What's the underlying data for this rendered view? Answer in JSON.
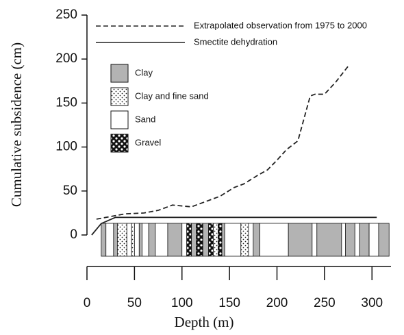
{
  "chart_data": {
    "type": "line",
    "xlabel": "Depth (m)",
    "ylabel": "Cumulative subsidence (cm)",
    "xlim": [
      0,
      320
    ],
    "ylim": [
      0,
      250
    ],
    "xticks": [
      0,
      50,
      100,
      150,
      200,
      250,
      300
    ],
    "yticks": [
      0,
      50,
      100,
      150,
      200,
      250
    ],
    "series": [
      {
        "name": "Extrapolated observation from 1975 to 2000",
        "color": "#222222",
        "style": "dashed",
        "x": [
          10,
          20,
          40,
          60,
          75,
          90,
          100,
          110,
          125,
          140,
          155,
          165,
          180,
          190,
          200,
          210,
          222,
          235,
          240,
          250,
          262,
          275
        ],
        "values": [
          18,
          20,
          24,
          25,
          28,
          34,
          33,
          32,
          38,
          44,
          54,
          58,
          68,
          74,
          85,
          97,
          107,
          158,
          160,
          160,
          174,
          192
        ]
      },
      {
        "name": "Smectite dehydration",
        "color": "#222222",
        "style": "solid",
        "x": [
          5,
          15,
          30,
          305
        ],
        "values": [
          0,
          13,
          20,
          20
        ]
      }
    ],
    "lithology_legend": [
      "Clay",
      "Clay and fine sand",
      "Sand",
      "Gravel"
    ],
    "lithology": [
      {
        "from": 15,
        "to": 20,
        "type": "Clay"
      },
      {
        "from": 20,
        "to": 28,
        "type": "Sand"
      },
      {
        "from": 28,
        "to": 32,
        "type": "Clay"
      },
      {
        "from": 32,
        "to": 42,
        "type": "Clay and fine sand"
      },
      {
        "from": 42,
        "to": 47,
        "type": "Sand"
      },
      {
        "from": 47,
        "to": 50,
        "type": "Clay and fine sand"
      },
      {
        "from": 50,
        "to": 55,
        "type": "Sand"
      },
      {
        "from": 55,
        "to": 58,
        "type": "Clay"
      },
      {
        "from": 58,
        "to": 65,
        "type": "Sand"
      },
      {
        "from": 65,
        "to": 72,
        "type": "Clay"
      },
      {
        "from": 72,
        "to": 85,
        "type": "Sand"
      },
      {
        "from": 85,
        "to": 100,
        "type": "Clay"
      },
      {
        "from": 100,
        "to": 105,
        "type": "Sand"
      },
      {
        "from": 105,
        "to": 110,
        "type": "Gravel"
      },
      {
        "from": 110,
        "to": 115,
        "type": "Clay"
      },
      {
        "from": 115,
        "to": 122,
        "type": "Gravel"
      },
      {
        "from": 122,
        "to": 128,
        "type": "Clay"
      },
      {
        "from": 128,
        "to": 133,
        "type": "Gravel"
      },
      {
        "from": 133,
        "to": 138,
        "type": "Clay and fine sand"
      },
      {
        "from": 138,
        "to": 142,
        "type": "Gravel"
      },
      {
        "from": 142,
        "to": 145,
        "type": "Clay"
      },
      {
        "from": 145,
        "to": 162,
        "type": "Sand"
      },
      {
        "from": 162,
        "to": 170,
        "type": "Clay and fine sand"
      },
      {
        "from": 170,
        "to": 175,
        "type": "Sand"
      },
      {
        "from": 175,
        "to": 182,
        "type": "Clay"
      },
      {
        "from": 182,
        "to": 212,
        "type": "Sand"
      },
      {
        "from": 212,
        "to": 237,
        "type": "Clay"
      },
      {
        "from": 237,
        "to": 242,
        "type": "Sand"
      },
      {
        "from": 242,
        "to": 268,
        "type": "Clay"
      },
      {
        "from": 268,
        "to": 272,
        "type": "Sand"
      },
      {
        "from": 272,
        "to": 282,
        "type": "Clay"
      },
      {
        "from": 282,
        "to": 287,
        "type": "Sand"
      },
      {
        "from": 287,
        "to": 297,
        "type": "Clay"
      },
      {
        "from": 297,
        "to": 307,
        "type": "Sand"
      },
      {
        "from": 307,
        "to": 318,
        "type": "Clay"
      }
    ]
  }
}
